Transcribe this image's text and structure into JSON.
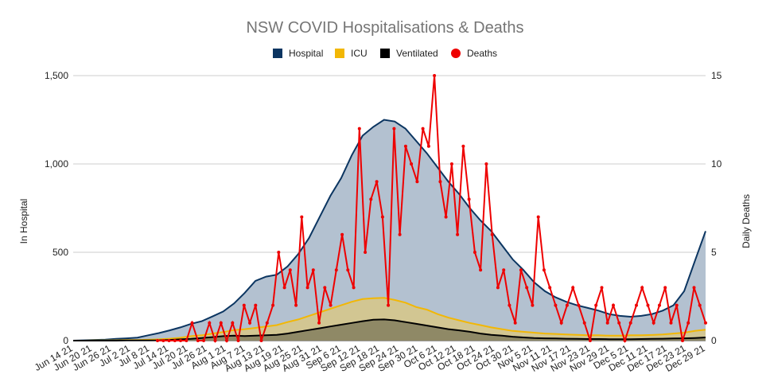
{
  "chart_data": {
    "type": "area",
    "title": "NSW COVID Hospitalisations & Deaths",
    "ylabel_left": "In Hospital",
    "ylabel_right": "Daily Deaths",
    "ylim_left": [
      0,
      1500
    ],
    "ylim_right": [
      0,
      15
    ],
    "yticks_left": [
      "0",
      "500",
      "1,000",
      "1,500"
    ],
    "yticks_right": [
      "0",
      "5",
      "10",
      "15"
    ],
    "grid": true,
    "legend_position": "top",
    "x_tick_labels": [
      "Jun 14 21",
      "Jun 20 21",
      "Jun 26 21",
      "Jul 2 21",
      "Jul 8 21",
      "Jul 14 21",
      "Jul 20 21",
      "Jul 26 21",
      "Aug 1 21",
      "Aug 7 21",
      "Aug 13 21",
      "Aug 19 21",
      "Aug 25 21",
      "Aug 31 21",
      "Sep 6 21",
      "Sep 12 21",
      "Sep 18 21",
      "Sep 24 21",
      "Sep 30 21",
      "Oct 6 21",
      "Oct 12 21",
      "Oct 18 21",
      "Oct 24 21",
      "Oct 30 21",
      "Nov 5 21",
      "Nov 11 21",
      "Nov 17 21",
      "Nov 23 21",
      "Nov 29 21",
      "Dec 5 21",
      "Dec 11 21",
      "Dec 17 21",
      "Dec 23 21",
      "Dec 29 21"
    ],
    "start_label": "Jun 14 21",
    "interval_days": 2,
    "series": [
      {
        "name": "Hospital",
        "color": "#0b3561",
        "fill": "#b3c1d0",
        "values": [
          0,
          2,
          4,
          6,
          10,
          13,
          17,
          30,
          43,
          58,
          75,
          95,
          110,
          137,
          165,
          210,
          270,
          338,
          362,
          373,
          420,
          490,
          580,
          700,
          820,
          920,
          1050,
          1160,
          1210,
          1250,
          1240,
          1200,
          1130,
          1060,
          980,
          900,
          830,
          750,
          680,
          620,
          540,
          460,
          400,
          330,
          280,
          245,
          220,
          200,
          185,
          170,
          150,
          140,
          135,
          140,
          150,
          170,
          200,
          280,
          450,
          620
        ]
      },
      {
        "name": "ICU",
        "color": "#f2b705",
        "fill": "#d2c692",
        "values": [
          0,
          0,
          1,
          1,
          2,
          3,
          3,
          5,
          7,
          11,
          16,
          25,
          30,
          40,
          48,
          60,
          65,
          72,
          80,
          88,
          105,
          120,
          140,
          160,
          180,
          200,
          220,
          235,
          240,
          242,
          230,
          215,
          190,
          175,
          150,
          130,
          115,
          100,
          88,
          75,
          65,
          55,
          50,
          45,
          40,
          38,
          35,
          33,
          30,
          30,
          28,
          28,
          30,
          30,
          32,
          35,
          40,
          45,
          55,
          62
        ]
      },
      {
        "name": "Ventilated",
        "color": "#000000",
        "fill": "#8f8966",
        "values": [
          0,
          0,
          0,
          0,
          0,
          1,
          1,
          1,
          2,
          4,
          7,
          10,
          15,
          20,
          25,
          28,
          26,
          28,
          30,
          33,
          40,
          50,
          60,
          70,
          80,
          90,
          100,
          110,
          118,
          120,
          115,
          105,
          95,
          85,
          75,
          65,
          58,
          50,
          40,
          33,
          28,
          22,
          18,
          15,
          13,
          12,
          11,
          10,
          9,
          9,
          8,
          8,
          8,
          9,
          10,
          11,
          12,
          13,
          15,
          18
        ]
      },
      {
        "name": "Deaths",
        "color": "#ee0000",
        "values": [
          0,
          0,
          0,
          0,
          0,
          0,
          1,
          0,
          0,
          1,
          0,
          1,
          0,
          1,
          0,
          2,
          1,
          2,
          0,
          1,
          2,
          5,
          3,
          4,
          2,
          7,
          3,
          4,
          1,
          3,
          2,
          4,
          6,
          4,
          3,
          12,
          5,
          8,
          9,
          7,
          2,
          12,
          6,
          11,
          10,
          9,
          12,
          11,
          15,
          9,
          7,
          10,
          6,
          11,
          8,
          5,
          4,
          10,
          6,
          3,
          4,
          2,
          1,
          4,
          3,
          2,
          7,
          4,
          3,
          2,
          1,
          2,
          3,
          2,
          1,
          0,
          2,
          3,
          1,
          2,
          1,
          0,
          1,
          2,
          3,
          2,
          1,
          2,
          3,
          1,
          2,
          0,
          1,
          3,
          2,
          1
        ]
      }
    ]
  }
}
